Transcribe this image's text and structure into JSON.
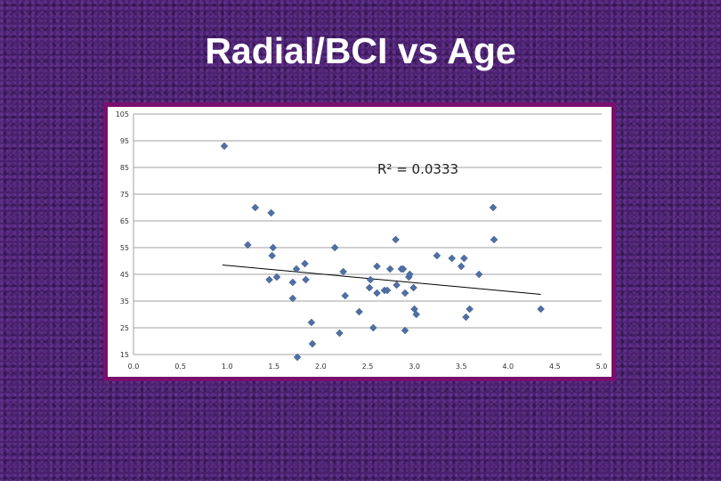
{
  "slide": {
    "title": "Radial/BCI vs Age"
  },
  "chart_data": {
    "type": "scatter",
    "title": "",
    "xlabel": "",
    "ylabel": "",
    "xlim": [
      0,
      5
    ],
    "ylim": [
      15,
      105
    ],
    "x_ticks": [
      "0.0",
      "0.5",
      "1.0",
      "1.5",
      "2.0",
      "2.5",
      "3.0",
      "3.5",
      "4.0",
      "4.5",
      "5.0"
    ],
    "y_ticks": [
      "105",
      "95",
      "85",
      "75",
      "65",
      "55",
      "45",
      "35",
      "25",
      "15"
    ],
    "grid": "horizontal",
    "marker_color": "#4f6fa5",
    "annotation": "R² = 0.0333",
    "trendline": {
      "x": [
        0.95,
        4.35
      ],
      "y": [
        48.5,
        37.5
      ]
    },
    "points": [
      {
        "x": 0.97,
        "y": 93
      },
      {
        "x": 1.22,
        "y": 56
      },
      {
        "x": 1.3,
        "y": 70
      },
      {
        "x": 1.47,
        "y": 68
      },
      {
        "x": 1.45,
        "y": 43
      },
      {
        "x": 1.48,
        "y": 52
      },
      {
        "x": 1.49,
        "y": 55
      },
      {
        "x": 1.53,
        "y": 44
      },
      {
        "x": 1.7,
        "y": 36
      },
      {
        "x": 1.7,
        "y": 42
      },
      {
        "x": 1.74,
        "y": 47
      },
      {
        "x": 1.83,
        "y": 49
      },
      {
        "x": 1.84,
        "y": 43
      },
      {
        "x": 1.9,
        "y": 27
      },
      {
        "x": 1.91,
        "y": 19
      },
      {
        "x": 1.75,
        "y": 14
      },
      {
        "x": 2.15,
        "y": 55
      },
      {
        "x": 2.2,
        "y": 23
      },
      {
        "x": 2.24,
        "y": 46
      },
      {
        "x": 2.26,
        "y": 37
      },
      {
        "x": 2.41,
        "y": 31
      },
      {
        "x": 2.52,
        "y": 40
      },
      {
        "x": 2.53,
        "y": 43
      },
      {
        "x": 2.56,
        "y": 25
      },
      {
        "x": 2.6,
        "y": 48
      },
      {
        "x": 2.6,
        "y": 38
      },
      {
        "x": 2.68,
        "y": 39
      },
      {
        "x": 2.71,
        "y": 39
      },
      {
        "x": 2.74,
        "y": 47
      },
      {
        "x": 2.8,
        "y": 58
      },
      {
        "x": 2.81,
        "y": 41
      },
      {
        "x": 2.86,
        "y": 47
      },
      {
        "x": 2.88,
        "y": 47
      },
      {
        "x": 2.9,
        "y": 38
      },
      {
        "x": 2.9,
        "y": 24
      },
      {
        "x": 2.94,
        "y": 44
      },
      {
        "x": 2.95,
        "y": 45
      },
      {
        "x": 2.99,
        "y": 40
      },
      {
        "x": 3.0,
        "y": 32
      },
      {
        "x": 3.02,
        "y": 30
      },
      {
        "x": 3.24,
        "y": 52
      },
      {
        "x": 3.4,
        "y": 51
      },
      {
        "x": 3.5,
        "y": 48
      },
      {
        "x": 3.53,
        "y": 51
      },
      {
        "x": 3.55,
        "y": 29
      },
      {
        "x": 3.59,
        "y": 32
      },
      {
        "x": 3.69,
        "y": 45
      },
      {
        "x": 3.84,
        "y": 70
      },
      {
        "x": 3.85,
        "y": 58
      },
      {
        "x": 4.35,
        "y": 32
      }
    ]
  }
}
